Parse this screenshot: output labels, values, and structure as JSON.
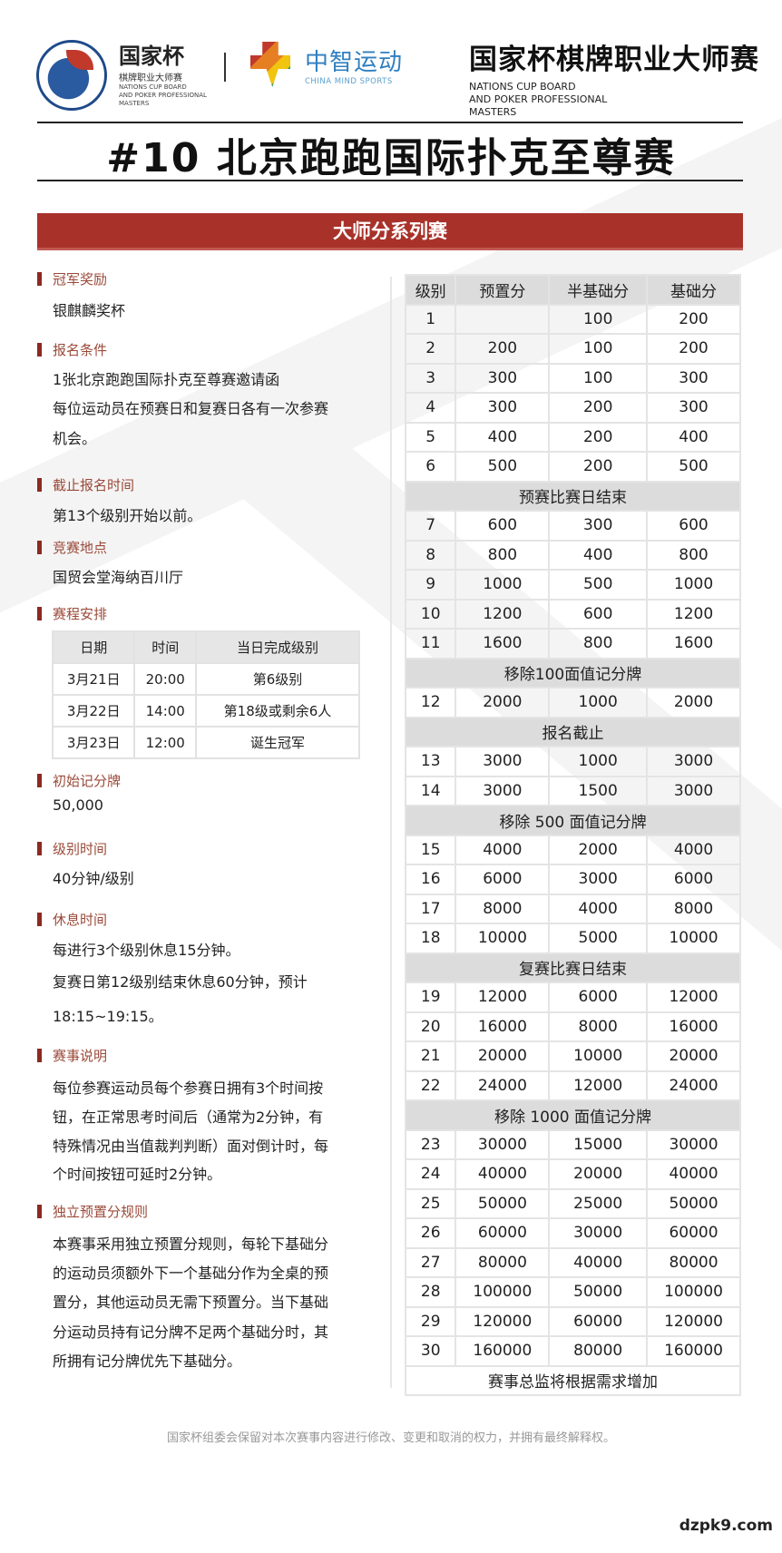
{
  "header": {
    "logo1_cn": "国家杯",
    "logo1_sub": "棋牌职业大师赛",
    "logo1_en": [
      "NATIONS CUP BOARD",
      "AND POKER PROFESSIONAL",
      "MASTERS"
    ],
    "logo2_cn": "中智运动",
    "logo2_en": "CHINA MIND SPORTS",
    "logo3_cn": "国家杯棋牌职业大师赛",
    "logo3_en": [
      "NATIONS CUP BOARD",
      "AND POKER PROFESSIONAL",
      "MASTERS"
    ],
    "colors": {
      "brand_red": "#a8322a",
      "logo_blue": "#1f4a8a",
      "logo_green": "#2f9a56"
    }
  },
  "title": "#10 北京跑跑国际扑克至尊赛",
  "banner": "大师分系列赛",
  "sections": {
    "prize": {
      "h": "冠军奖励",
      "lines": [
        "银麒麟奖杯"
      ]
    },
    "entry": {
      "h": "报名条件",
      "lines": [
        "1张北京跑跑国际扑克至尊赛邀请函",
        "每位运动员在预赛日和复赛日各有一次参赛",
        "机会。"
      ]
    },
    "deadline": {
      "h": "截止报名时间",
      "lines": [
        "第13个级别开始以前。"
      ]
    },
    "venue": {
      "h": "竞赛地点",
      "lines": [
        "国贸会堂海纳百川厅"
      ]
    },
    "schedule": {
      "h": "赛程安排",
      "headers": [
        "日期",
        "时间",
        "当日完成级别"
      ],
      "rows": [
        [
          "3月21日",
          "20:00",
          "第6级别"
        ],
        [
          "3月22日",
          "14:00",
          "第18级或剩余6人"
        ],
        [
          "3月23日",
          "12:00",
          "诞生冠军"
        ]
      ]
    },
    "stack": {
      "h": "初始记分牌",
      "lines": [
        "50,000"
      ]
    },
    "level_time": {
      "h": "级别时间",
      "lines": [
        "40分钟/级别"
      ]
    },
    "breaks": {
      "h": "休息时间",
      "lines": [
        "每进行3个级别休息15分钟。",
        "复赛日第12级别结束休息60分钟，预计",
        "18:15~19:15。"
      ]
    },
    "notes": {
      "h": "赛事说明",
      "lines": [
        "每位参赛运动员每个参赛日拥有3个时间按",
        "钮，在正常思考时间后（通常为2分钟，有",
        "特殊情况由当值裁判判断）面对倒计时，每",
        "个时间按钮可延时2分钟。"
      ]
    },
    "ante": {
      "h": "独立预置分规则",
      "lines": [
        "本赛事采用独立预置分规则，每轮下基础分",
        "的运动员须额外下一个基础分作为全桌的预",
        "置分，其他运动员无需下预置分。当下基础",
        "分运动员持有记分牌不足两个基础分时，其",
        "所拥有记分牌优先下基础分。"
      ]
    }
  },
  "levels": {
    "headers": [
      "级别",
      "预置分",
      "半基础分",
      "基础分"
    ],
    "rows": [
      [
        "1",
        "",
        "100",
        "200"
      ],
      [
        "2",
        "200",
        "100",
        "200"
      ],
      [
        "3",
        "300",
        "100",
        "300"
      ],
      [
        "4",
        "300",
        "200",
        "300"
      ],
      [
        "5",
        "400",
        "200",
        "400"
      ],
      [
        "6",
        "500",
        "200",
        "500"
      ],
      {
        "divider": "预赛比赛日结束"
      },
      [
        "7",
        "600",
        "300",
        "600"
      ],
      [
        "8",
        "800",
        "400",
        "800"
      ],
      [
        "9",
        "1000",
        "500",
        "1000"
      ],
      [
        "10",
        "1200",
        "600",
        "1200"
      ],
      [
        "11",
        "1600",
        "800",
        "1600"
      ],
      {
        "divider": "移除100面值记分牌"
      },
      [
        "12",
        "2000",
        "1000",
        "2000"
      ],
      {
        "divider": "报名截止"
      },
      [
        "13",
        "3000",
        "1000",
        "3000"
      ],
      [
        "14",
        "3000",
        "1500",
        "3000"
      ],
      {
        "divider": "移除 500 面值记分牌"
      },
      [
        "15",
        "4000",
        "2000",
        "4000"
      ],
      [
        "16",
        "6000",
        "3000",
        "6000"
      ],
      [
        "17",
        "8000",
        "4000",
        "8000"
      ],
      [
        "18",
        "10000",
        "5000",
        "10000"
      ],
      {
        "divider": "复赛比赛日结束"
      },
      [
        "19",
        "12000",
        "6000",
        "12000"
      ],
      [
        "20",
        "16000",
        "8000",
        "16000"
      ],
      [
        "21",
        "20000",
        "10000",
        "20000"
      ],
      [
        "22",
        "24000",
        "12000",
        "24000"
      ],
      {
        "divider": "移除 1000 面值记分牌"
      },
      [
        "23",
        "30000",
        "15000",
        "30000"
      ],
      [
        "24",
        "40000",
        "20000",
        "40000"
      ],
      [
        "25",
        "50000",
        "25000",
        "50000"
      ],
      [
        "26",
        "60000",
        "30000",
        "60000"
      ],
      [
        "27",
        "80000",
        "40000",
        "80000"
      ],
      [
        "28",
        "100000",
        "50000",
        "100000"
      ],
      [
        "29",
        "120000",
        "60000",
        "120000"
      ],
      [
        "30",
        "160000",
        "80000",
        "160000"
      ]
    ],
    "footer": "赛事总监将根据需求增加"
  },
  "footer": "国家杯组委会保留对本次赛事内容进行修改、变更和取消的权力，并拥有最终解释权。",
  "watermark": "dzpk9.com"
}
